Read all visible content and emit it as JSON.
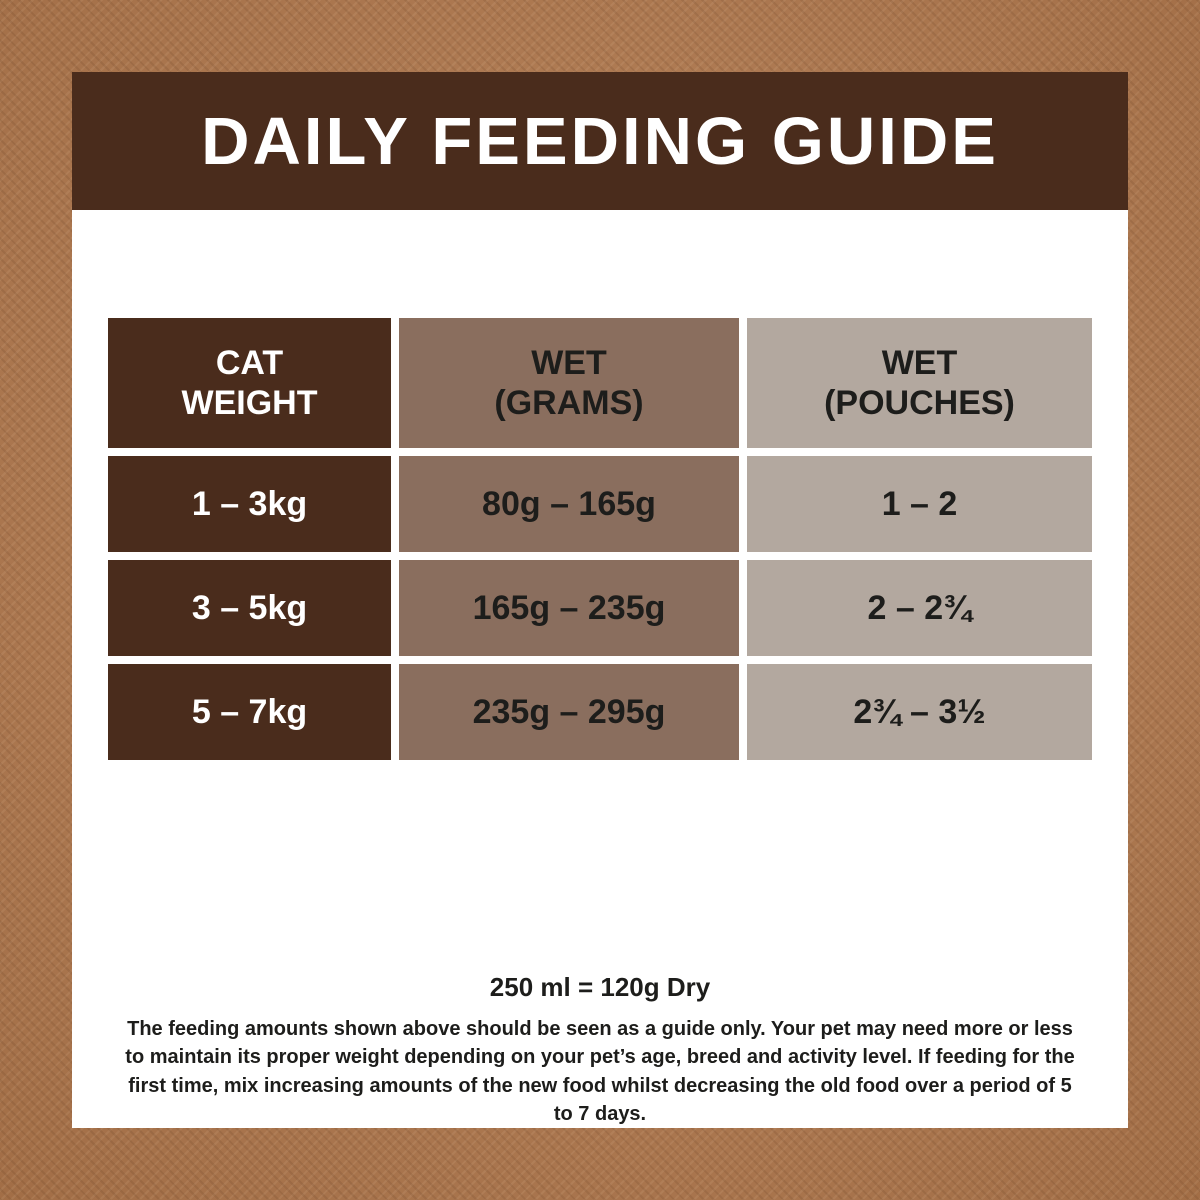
{
  "title": "DAILY FEEDING GUIDE",
  "table": {
    "columns": [
      {
        "line1": "CAT",
        "line2": "WEIGHT"
      },
      {
        "line1": "WET",
        "line2": "(GRAMS)"
      },
      {
        "line1": "WET",
        "line2": "(POUCHES)"
      }
    ],
    "rows": [
      {
        "weight": "1 – 3kg",
        "wet_grams": "80g – 165g",
        "wet_pouches": "1 – 2"
      },
      {
        "weight": "3 – 5kg",
        "wet_grams": "165g – 235g",
        "wet_pouches": "2 – 2¾"
      },
      {
        "weight": "5 – 7kg",
        "wet_grams": "235g – 295g",
        "wet_pouches": "2¾ – 3½"
      }
    ]
  },
  "footer": {
    "conversion": "250 ml = 120g Dry",
    "note": "The feeding amounts shown above should be seen as a guide only. Your pet may need more or less to maintain its proper weight depending on your pet’s age, breed and activity level. If feeding for the first time, mix increasing amounts of the new food whilst decreasing the old food over a period of 5 to 7 days."
  },
  "colors": {
    "background": "#b47a4e",
    "header_band": "#4a2c1c",
    "dark_cell": "#4a2c1c",
    "medium_cell": "#8a6e5e",
    "light_cell": "#b3a89f",
    "text_dark": "#1d1d1b",
    "text_light": "#ffffff"
  },
  "chart_data": {
    "type": "table",
    "title": "DAILY FEEDING GUIDE",
    "columns": [
      "CAT WEIGHT",
      "WET (GRAMS)",
      "WET (POUCHES)"
    ],
    "rows": [
      [
        "1 – 3kg",
        "80g – 165g",
        "1 – 2"
      ],
      [
        "3 – 5kg",
        "165g – 235g",
        "2 – 2¾"
      ],
      [
        "5 – 7kg",
        "235g – 295g",
        "2¾ – 3½"
      ]
    ]
  }
}
